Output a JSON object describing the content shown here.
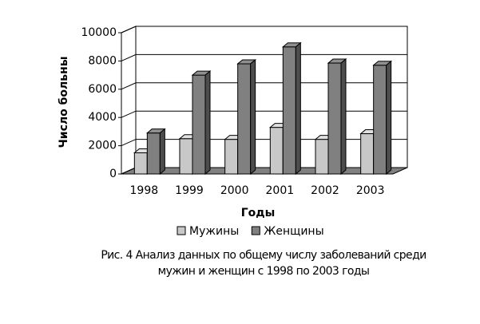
{
  "chart_data": {
    "type": "bar3d",
    "y_label": "Число больны",
    "x_label": "Годы",
    "caption": [
      "Рис. 4 Анализ данных по общему числу заболеваний среди",
      "мужин и женщин с 1998 по 2003 годы"
    ],
    "categories": [
      "1998",
      "1999",
      "2000",
      "2001",
      "2002",
      "2003"
    ],
    "series": [
      {
        "name": "Мужины",
        "color": "#c8c8c8",
        "values": [
          1500,
          2500,
          2450,
          3300,
          2450,
          2850
        ]
      },
      {
        "name": "Женщины",
        "color": "#808080",
        "values": [
          2900,
          7000,
          7800,
          9000,
          7850,
          7700
        ]
      }
    ],
    "ylim": [
      0,
      10000
    ],
    "yticks": [
      0,
      2000,
      4000,
      6000,
      8000,
      10000
    ],
    "grid": true
  }
}
